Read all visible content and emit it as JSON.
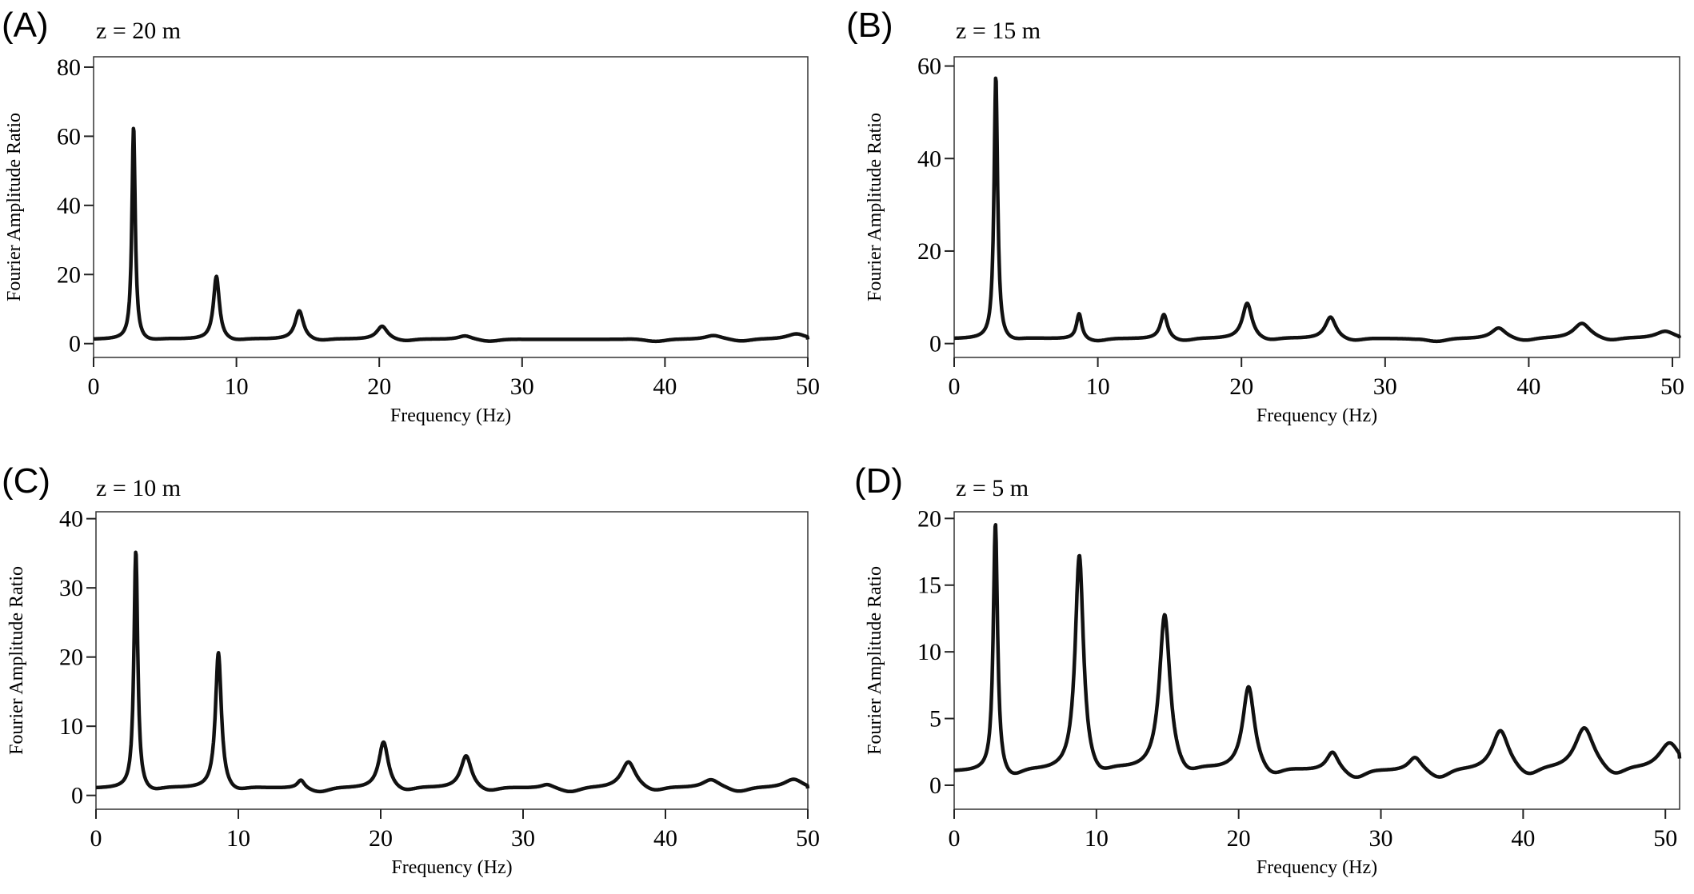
{
  "chart_data": [
    {
      "panel": "(A)",
      "type": "line",
      "title": "z = 20 m",
      "xlabel": "Frequency (Hz)",
      "ylabel": "Fourier Amplitude Ratio",
      "xlim": [
        0,
        50
      ],
      "ylim": [
        -4,
        83
      ],
      "xticks": [
        0,
        10,
        20,
        30,
        40,
        50
      ],
      "yticks": [
        0,
        20,
        40,
        60,
        80
      ],
      "grid": false,
      "baseline": 1.2,
      "peaks": [
        {
          "f": 2.8,
          "amp": 63,
          "width": 0.14
        },
        {
          "f": 8.6,
          "amp": 19.5,
          "width": 0.25
        },
        {
          "f": 14.4,
          "amp": 9.5,
          "width": 0.35
        },
        {
          "f": 20.2,
          "amp": 5,
          "width": 0.45
        },
        {
          "f": 26.0,
          "amp": 2.2,
          "width": 0.55
        },
        {
          "f": 37.6,
          "amp": 1.3,
          "width": 0.6
        },
        {
          "f": 43.4,
          "amp": 2.3,
          "width": 0.7
        },
        {
          "f": 49.2,
          "amp": 2.8,
          "width": 0.8
        }
      ],
      "end_value": 1.2
    },
    {
      "panel": "(B)",
      "type": "line",
      "title": "z = 15 m",
      "xlabel": "Frequency (Hz)",
      "ylabel": "Fourier Amplitude Ratio",
      "xlim": [
        0,
        50.5
      ],
      "ylim": [
        -3,
        62
      ],
      "xticks": [
        0,
        10,
        20,
        30,
        40,
        50
      ],
      "yticks": [
        0,
        20,
        40,
        60
      ],
      "grid": false,
      "baseline": 1.0,
      "peaks": [
        {
          "f": 2.9,
          "amp": 58,
          "width": 0.15
        },
        {
          "f": 8.7,
          "amp": 6.5,
          "width": 0.22
        },
        {
          "f": 14.6,
          "amp": 6.3,
          "width": 0.3
        },
        {
          "f": 20.4,
          "amp": 8.7,
          "width": 0.4
        },
        {
          "f": 26.2,
          "amp": 5.7,
          "width": 0.45
        },
        {
          "f": 32.0,
          "amp": 0.9,
          "width": 0.5
        },
        {
          "f": 37.9,
          "amp": 3.3,
          "width": 0.6
        },
        {
          "f": 43.7,
          "amp": 4.3,
          "width": 0.7
        },
        {
          "f": 49.5,
          "amp": 2.6,
          "width": 0.8
        }
      ],
      "end_value": 1.2
    },
    {
      "panel": "(C)",
      "type": "line",
      "title": "z = 10 m",
      "xlabel": "Frequency (Hz)",
      "ylabel": "Fourier Amplitude Ratio",
      "xlim": [
        0,
        50
      ],
      "ylim": [
        -2,
        41
      ],
      "xticks": [
        0,
        10,
        20,
        30,
        40,
        50
      ],
      "yticks": [
        0,
        10,
        20,
        30,
        40
      ],
      "grid": false,
      "baseline": 1.0,
      "peaks": [
        {
          "f": 2.8,
          "amp": 35.5,
          "width": 0.16
        },
        {
          "f": 8.6,
          "amp": 20.7,
          "width": 0.25
        },
        {
          "f": 14.4,
          "amp": 2.2,
          "width": 0.3
        },
        {
          "f": 20.2,
          "amp": 7.7,
          "width": 0.4
        },
        {
          "f": 26.0,
          "amp": 5.7,
          "width": 0.45
        },
        {
          "f": 31.7,
          "amp": 1.5,
          "width": 0.5
        },
        {
          "f": 37.4,
          "amp": 4.8,
          "width": 0.6
        },
        {
          "f": 43.2,
          "amp": 2.2,
          "width": 0.7
        },
        {
          "f": 49.0,
          "amp": 2.3,
          "width": 0.8
        }
      ],
      "end_value": 1.0
    },
    {
      "panel": "(D)",
      "type": "line",
      "title": "z = 5 m",
      "xlabel": "Frequency (Hz)",
      "ylabel": "Fourier Amplitude Ratio",
      "xlim": [
        0,
        51
      ],
      "ylim": [
        -1.8,
        20.5
      ],
      "xticks": [
        0,
        10,
        20,
        30,
        40,
        50
      ],
      "yticks": [
        0,
        5,
        10,
        15,
        20
      ],
      "grid": false,
      "baseline": 1.0,
      "peaks": [
        {
          "f": 2.9,
          "amp": 19.7,
          "width": 0.18
        },
        {
          "f": 8.8,
          "amp": 17.2,
          "width": 0.35
        },
        {
          "f": 14.8,
          "amp": 12.7,
          "width": 0.45
        },
        {
          "f": 20.7,
          "amp": 7.3,
          "width": 0.5
        },
        {
          "f": 26.6,
          "amp": 2.4,
          "width": 0.5
        },
        {
          "f": 32.4,
          "amp": 2.0,
          "width": 0.55
        },
        {
          "f": 38.4,
          "amp": 4.0,
          "width": 0.7
        },
        {
          "f": 44.3,
          "amp": 4.2,
          "width": 0.8
        },
        {
          "f": 50.3,
          "amp": 3.1,
          "width": 0.9
        }
      ],
      "end_value": 2.0
    }
  ]
}
